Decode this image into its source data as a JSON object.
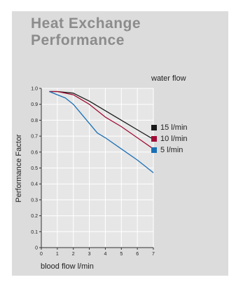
{
  "chart_data": {
    "type": "line",
    "title_lines": [
      "Heat Exchange",
      "Performance"
    ],
    "xlabel": "blood flow l/min",
    "ylabel": "Performance Factor",
    "xlim": [
      0,
      7
    ],
    "ylim": [
      0,
      1.0
    ],
    "x_ticks": [
      "0",
      "1",
      "2",
      "3",
      "4",
      "5",
      "6",
      "7"
    ],
    "y_ticks": [
      "0",
      "0.1",
      "0.2",
      "0.3",
      "0.4",
      "0.5",
      "0.6",
      "0.7",
      "0.8",
      "0.9",
      "1.0"
    ],
    "grid": true,
    "legend_title": "water flow",
    "legend_position": "right",
    "series": [
      {
        "name": "15 l/min",
        "color": "#1a1a1a",
        "x": [
          0.5,
          1,
          2,
          3,
          4,
          5,
          6,
          7
        ],
        "y": [
          0.98,
          0.98,
          0.97,
          0.92,
          0.86,
          0.8,
          0.74,
          0.68
        ]
      },
      {
        "name": "10 l/min",
        "color": "#a00d35",
        "x": [
          0.5,
          1,
          2,
          3,
          4,
          5,
          6,
          7
        ],
        "y": [
          0.98,
          0.98,
          0.96,
          0.9,
          0.82,
          0.76,
          0.69,
          0.62
        ]
      },
      {
        "name": "5 l/min",
        "color": "#1a6fb5",
        "x": [
          0.5,
          1,
          1.5,
          2,
          3,
          3.5,
          4,
          5,
          6,
          7
        ],
        "y": [
          0.98,
          0.96,
          0.94,
          0.9,
          0.78,
          0.72,
          0.69,
          0.62,
          0.55,
          0.47
        ]
      }
    ]
  }
}
